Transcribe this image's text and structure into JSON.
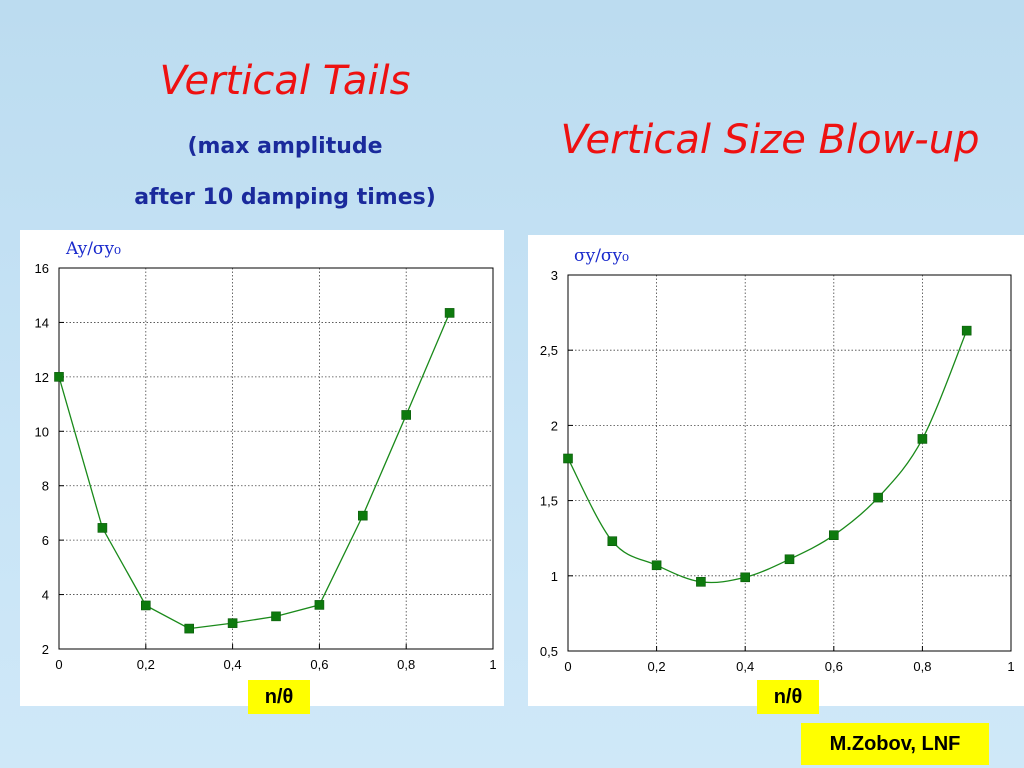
{
  "slide": {
    "title_left": "Vertical Tails",
    "subtitle_line1": "(max amplitude",
    "subtitle_line2": "after 10 damping times)",
    "title_right": "Vertical Size Blow-up",
    "credit": "M.Zobov, LNF"
  },
  "colors": {
    "title": "#ee1111",
    "subtitle": "#1a2a9c",
    "series": "#1a8a1a",
    "marker": "#0e7a0e",
    "badge": "#ffff00",
    "ylabel": "#1a2acc"
  },
  "chart_data": [
    {
      "type": "line",
      "ylabel": "Ay/σy₀",
      "xlabel": "n/θ",
      "xlim": [
        0,
        1
      ],
      "ylim": [
        2,
        16
      ],
      "xticks": [
        0,
        0.2,
        0.4,
        0.6,
        0.8,
        1
      ],
      "xtick_labels": [
        "0",
        "0,2",
        "0,4",
        "0,6",
        "0,8",
        "1"
      ],
      "yticks": [
        2,
        4,
        6,
        8,
        10,
        12,
        14,
        16
      ],
      "ytick_labels": [
        "2",
        "4",
        "6",
        "8",
        "10",
        "12",
        "14",
        "16"
      ],
      "grid": true,
      "x": [
        0,
        0.1,
        0.2,
        0.3,
        0.4,
        0.5,
        0.6,
        0.7,
        0.8,
        0.9
      ],
      "y": [
        12.0,
        6.45,
        3.6,
        2.75,
        2.95,
        3.2,
        3.62,
        6.9,
        10.6,
        14.35
      ]
    },
    {
      "type": "line",
      "ylabel": "σy/σy₀",
      "xlabel": "n/θ",
      "xlim": [
        0,
        1
      ],
      "ylim": [
        0.5,
        3
      ],
      "xticks": [
        0,
        0.2,
        0.4,
        0.6,
        0.8,
        1
      ],
      "xtick_labels": [
        "0",
        "0,2",
        "0,4",
        "0,6",
        "0,8",
        "1"
      ],
      "yticks": [
        0.5,
        1,
        1.5,
        2,
        2.5,
        3
      ],
      "ytick_labels": [
        "0,5",
        "1",
        "1,5",
        "2",
        "2,5",
        "3"
      ],
      "grid": true,
      "x": [
        0,
        0.1,
        0.2,
        0.3,
        0.4,
        0.5,
        0.6,
        0.7,
        0.8,
        0.9
      ],
      "y": [
        1.78,
        1.23,
        1.07,
        0.96,
        0.99,
        1.11,
        1.27,
        1.52,
        1.91,
        2.63
      ]
    }
  ]
}
